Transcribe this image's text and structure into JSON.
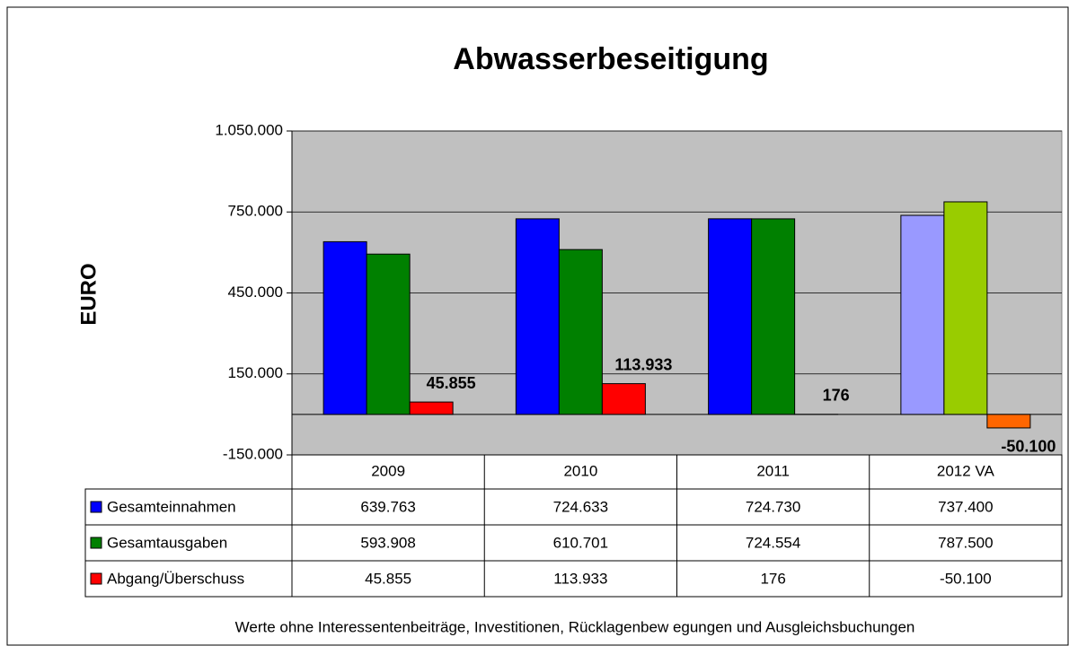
{
  "chart_data": {
    "type": "bar",
    "title": "Abwasserbeseitigung",
    "y_label": "EURO",
    "footnote": "Werte ohne Interessentenbeiträge, Investitionen, Rücklagenbew egungen und Ausgleichsbuchungen",
    "categories": [
      "2009",
      "2010",
      "2011",
      "2012 VA"
    ],
    "series": [
      {
        "name": "Gesamteinnahmen",
        "colors": [
          "#0000ff",
          "#0000ff",
          "#0000ff",
          "#9999ff"
        ],
        "values": [
          639763,
          724633,
          724730,
          737400
        ],
        "value_labels": [
          "639.763",
          "724.633",
          "724.730",
          "737.400"
        ]
      },
      {
        "name": "Gesamtausgaben",
        "colors": [
          "#008000",
          "#008000",
          "#008000",
          "#99cc00"
        ],
        "values": [
          593908,
          610701,
          724554,
          787500
        ],
        "value_labels": [
          "593.908",
          "610.701",
          "724.554",
          "787.500"
        ]
      },
      {
        "name": "Abgang/Überschuss",
        "colors": [
          "#ff0000",
          "#ff0000",
          "#ff0000",
          "#ff6600"
        ],
        "values": [
          45855,
          113933,
          176,
          -50100
        ],
        "value_labels": [
          "45.855",
          "113.933",
          "176",
          "-50.100"
        ],
        "data_labels": true,
        "data_label_colors": [
          "#000000",
          "#000000",
          "#000000",
          "#ff0000"
        ]
      }
    ],
    "ylim": [
      -150000,
      1050000
    ],
    "yticks": [
      {
        "value": -150000,
        "label": "-150.000"
      },
      {
        "value": 150000,
        "label": "150.000"
      },
      {
        "value": 450000,
        "label": "450.000"
      },
      {
        "value": 750000,
        "label": "750.000"
      },
      {
        "value": 1050000,
        "label": "1.050.000"
      }
    ],
    "grid": true,
    "plot_background": "#c0c0c0",
    "data_table": true
  }
}
